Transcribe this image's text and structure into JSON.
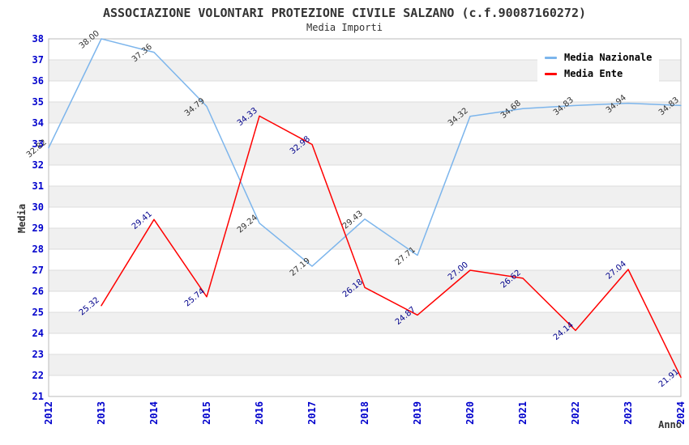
{
  "chart_data": {
    "type": "line",
    "title": "ASSOCIAZIONE VOLONTARI PROTEZIONE CIVILE SALZANO (c.f.90087160272)",
    "subtitle": "Media Importi",
    "xlabel": "Anno",
    "ylabel": "Media",
    "categories": [
      "2012",
      "2013",
      "2014",
      "2015",
      "2016",
      "2017",
      "2018",
      "2019",
      "2020",
      "2021",
      "2022",
      "2023",
      "2024"
    ],
    "ylim": [
      21,
      38
    ],
    "ytick_step": 1,
    "grid": "horizontal-gridlines-with-alternating-bands",
    "legend_position": "top-right",
    "series": [
      {
        "name": "Media Nazionale",
        "color": "#7CB5EC",
        "label_color": "#333333",
        "values": [
          32.82,
          38.0,
          37.36,
          34.79,
          29.24,
          27.19,
          29.43,
          27.71,
          34.32,
          34.68,
          34.83,
          34.94,
          34.83
        ]
      },
      {
        "name": "Media Ente",
        "color": "#FF0000",
        "label_color": "#00008B",
        "values": [
          null,
          25.32,
          29.41,
          25.74,
          34.33,
          32.98,
          26.18,
          24.87,
          27.0,
          26.62,
          24.14,
          27.04,
          21.91
        ]
      }
    ]
  },
  "colors": {
    "axis_text": "#0000CC",
    "band": "#F0F0F0",
    "grid_line": "#DDDDDD",
    "plot_border": "#BBBBBB",
    "title_text": "#333333"
  }
}
